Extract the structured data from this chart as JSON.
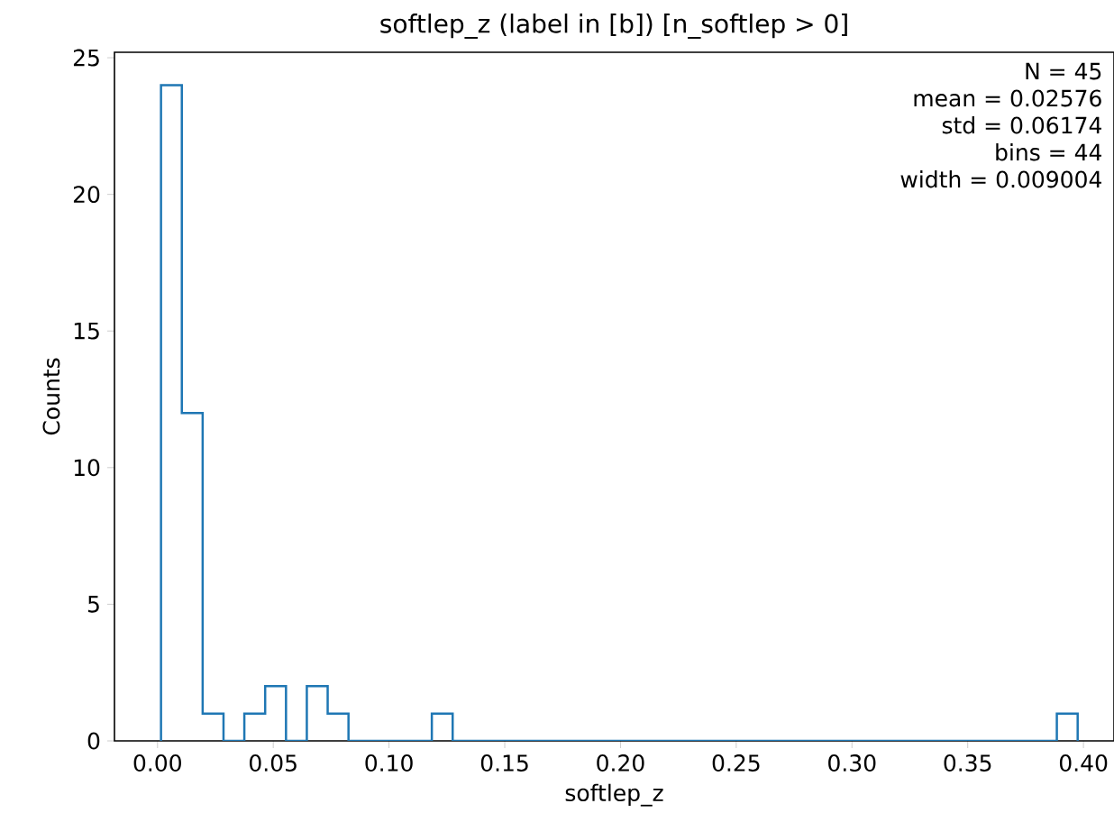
{
  "chart_data": {
    "type": "histogram",
    "title": "softlep_z (label in [b]) [n_softlep > 0]",
    "xlabel": "softlep_z",
    "ylabel": "Counts",
    "color": "#1f77b4",
    "bins": [
      0.0015,
      0.0105,
      0.0195,
      0.0285,
      0.0375,
      0.0465,
      0.0555,
      0.0645,
      0.0735,
      0.0825,
      0.0915,
      0.1005,
      0.1095,
      0.1185,
      0.1275,
      0.1365,
      0.1455,
      0.1545,
      0.1635,
      0.1725,
      0.1815,
      0.1905,
      0.1995,
      0.2085,
      0.2175,
      0.2265,
      0.2355,
      0.2445,
      0.2535,
      0.2625,
      0.2715,
      0.2805,
      0.2895,
      0.2985,
      0.3075,
      0.3165,
      0.3255,
      0.3345,
      0.3435,
      0.3525,
      0.3615,
      0.3705,
      0.3795,
      0.3885,
      0.3975
    ],
    "values": [
      24,
      12,
      1,
      0,
      1,
      2,
      0,
      2,
      1,
      0,
      0,
      0,
      0,
      1,
      0,
      0,
      0,
      0,
      0,
      0,
      0,
      0,
      0,
      0,
      0,
      0,
      0,
      0,
      0,
      0,
      0,
      0,
      0,
      0,
      0,
      0,
      0,
      0,
      0,
      0,
      0,
      0,
      0,
      1
    ],
    "xlim": [
      -0.0186,
      0.4132
    ],
    "ylim": [
      0,
      25.2
    ],
    "xticks": [
      {
        "value": 0,
        "label": "0.00"
      },
      {
        "value": 0.05,
        "label": "0.05"
      },
      {
        "value": 0.1,
        "label": "0.10"
      },
      {
        "value": 0.15,
        "label": "0.15"
      },
      {
        "value": 0.2,
        "label": "0.20"
      },
      {
        "value": 0.25,
        "label": "0.25"
      },
      {
        "value": 0.3,
        "label": "0.30"
      },
      {
        "value": 0.35,
        "label": "0.35"
      },
      {
        "value": 0.4,
        "label": "0.40"
      }
    ],
    "yticks": [
      0,
      5,
      10,
      15,
      20,
      25
    ],
    "annotations": [
      "N = 45",
      "mean = 0.02576",
      "std = 0.06174",
      "bins = 44",
      "width = 0.009004"
    ]
  }
}
